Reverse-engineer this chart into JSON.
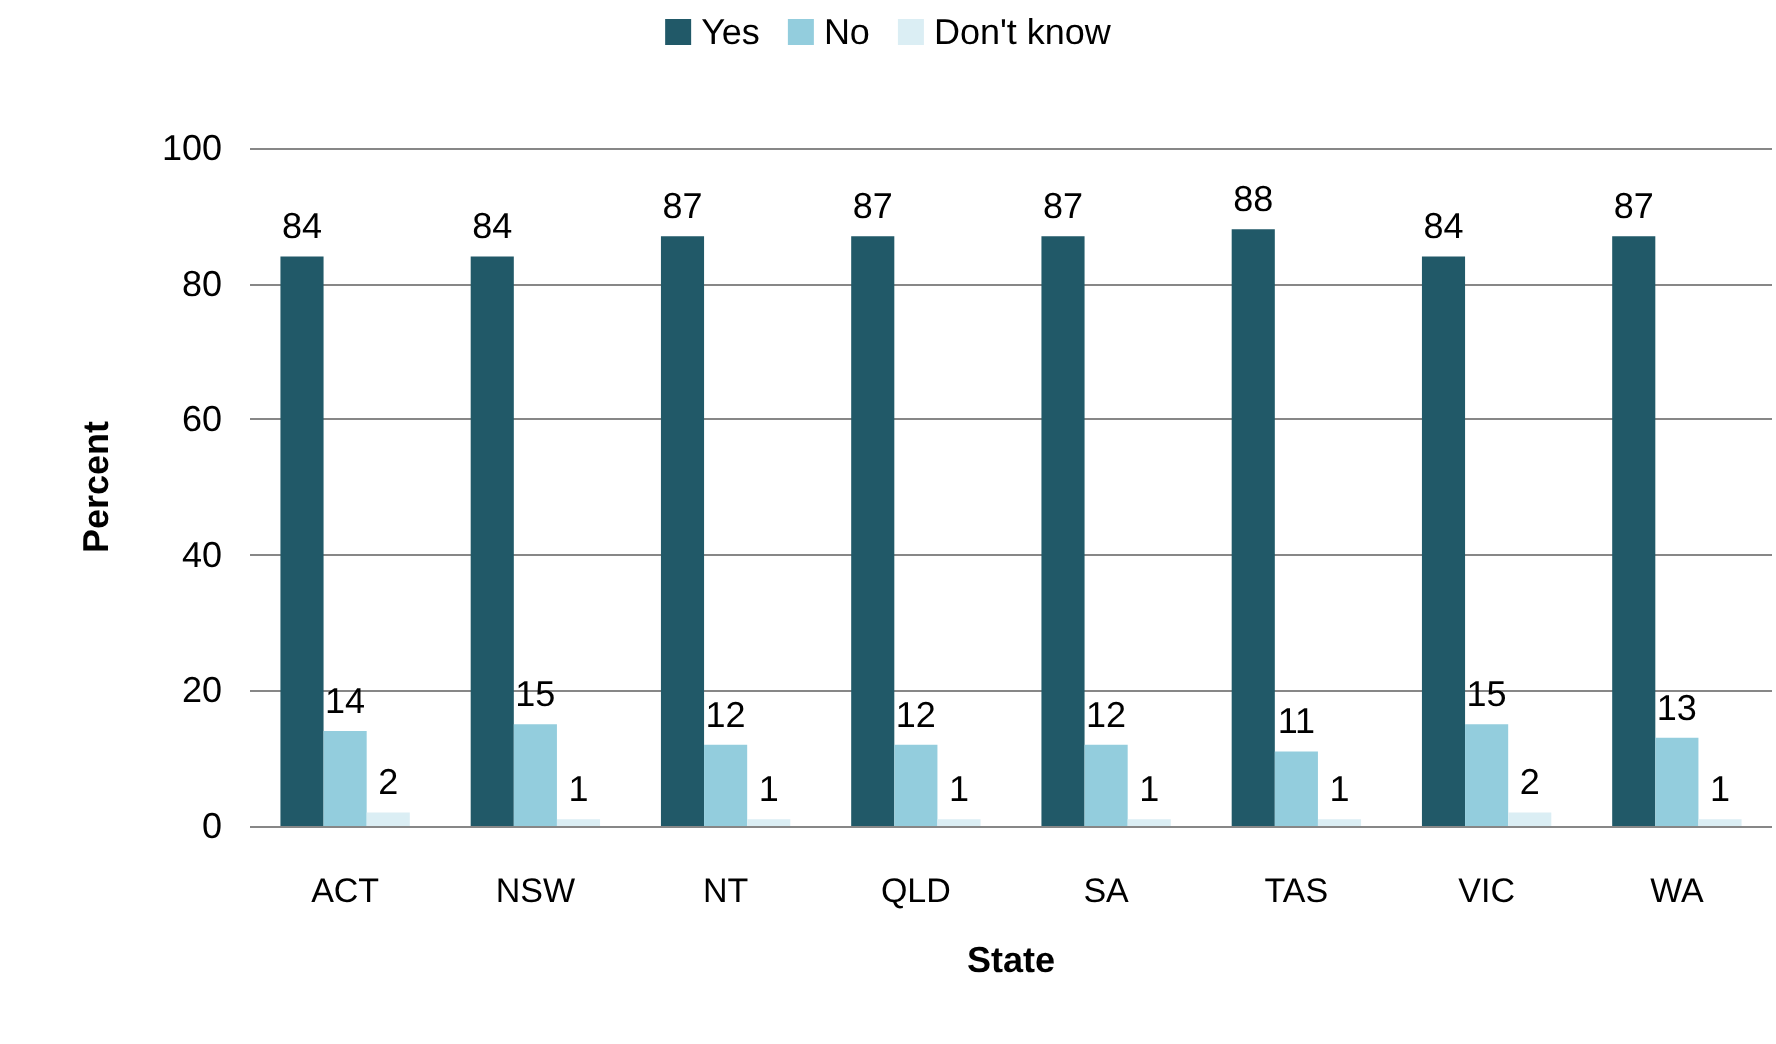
{
  "chart_data": {
    "type": "bar",
    "xlabel": "State",
    "ylabel": "Percent",
    "categories": [
      "ACT",
      "NSW",
      "NT",
      "QLD",
      "SA",
      "TAS",
      "VIC",
      "WA"
    ],
    "series": [
      {
        "name": "Yes",
        "color": "#215968",
        "values": [
          84,
          84,
          87,
          87,
          87,
          88,
          84,
          87
        ]
      },
      {
        "name": "No",
        "color": "#93cddd",
        "values": [
          14,
          15,
          12,
          12,
          12,
          11,
          15,
          13
        ]
      },
      {
        "name": "Don't know",
        "color": "#dbeef4",
        "values": [
          2,
          1,
          1,
          1,
          1,
          1,
          2,
          1
        ]
      }
    ],
    "ylim": [
      0,
      100
    ],
    "yticks": [
      0,
      20,
      40,
      60,
      80,
      100
    ],
    "grid": "y",
    "legend": "top",
    "data_labels": true
  }
}
